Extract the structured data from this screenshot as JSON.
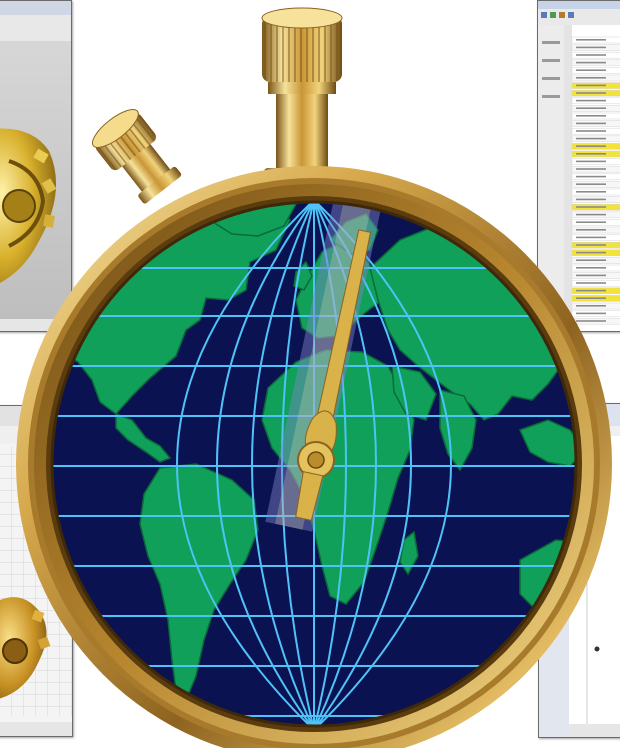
{
  "scene": {
    "subject": "stopwatch-with-world-map-dial",
    "colors": {
      "brass_light": "#f4dc8c",
      "brass_mid": "#d2a64a",
      "brass_dark": "#8a6222",
      "ocean": "#0b1252",
      "gridline": "#4fc3f7",
      "land": "#10a05a",
      "hand_gold": "#d9b24a",
      "panel_blue": "#7f86c8",
      "highlight_yellow": "#f2e23a",
      "window_grey": "#d8d8d8"
    }
  },
  "screenshots": [
    {
      "name": "cad-model-viewer-top-left",
      "icon": "gear-icon"
    },
    {
      "name": "spreadsheet-schedule-top-right",
      "icon": "table-icon"
    },
    {
      "name": "cad-model-viewer-bottom-left",
      "icon": "gear-icon"
    },
    {
      "name": "diagram-editor-bottom-right",
      "icon": "chart-icon"
    }
  ]
}
